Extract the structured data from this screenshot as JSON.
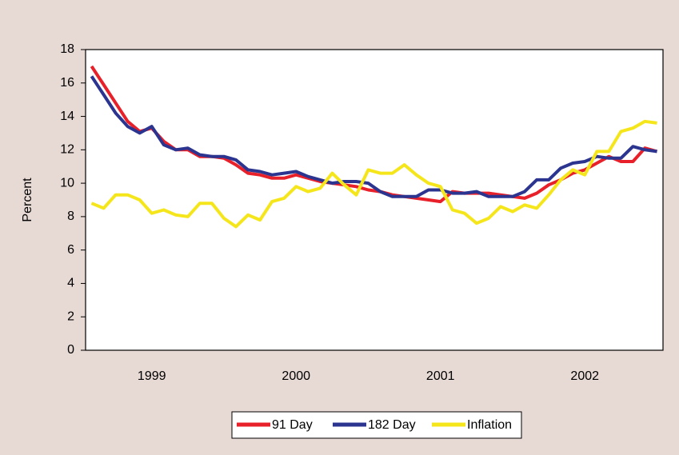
{
  "chart_data": {
    "type": "line",
    "y_label": "Percent",
    "categories": [
      null,
      null,
      null,
      null,
      null,
      "1999",
      null,
      null,
      null,
      null,
      null,
      null,
      null,
      null,
      null,
      null,
      null,
      "2000",
      null,
      null,
      null,
      null,
      null,
      null,
      null,
      null,
      null,
      null,
      null,
      "2001",
      null,
      null,
      null,
      null,
      null,
      null,
      null,
      null,
      null,
      null,
      null,
      "2002",
      null,
      null,
      null,
      null,
      null,
      null
    ],
    "series": [
      {
        "name": "91 Day",
        "color": "#e8202a",
        "values": [
          17.0,
          15.9,
          14.8,
          13.7,
          13.1,
          13.3,
          12.5,
          12.0,
          12.0,
          11.6,
          11.6,
          11.5,
          11.1,
          10.6,
          10.5,
          10.3,
          10.3,
          10.5,
          10.3,
          10.1,
          10.0,
          9.9,
          9.8,
          9.6,
          9.5,
          9.3,
          9.2,
          9.1,
          9.0,
          8.9,
          9.5,
          9.4,
          9.4,
          9.4,
          9.3,
          9.2,
          9.1,
          9.4,
          9.9,
          10.2,
          10.6,
          10.8,
          11.2,
          11.6,
          11.3,
          11.3,
          12.1,
          11.9
        ]
      },
      {
        "name": "182 Day",
        "color": "#2b3590",
        "values": [
          16.4,
          15.3,
          14.2,
          13.4,
          13.0,
          13.4,
          12.3,
          12.0,
          12.1,
          11.7,
          11.6,
          11.6,
          11.4,
          10.8,
          10.7,
          10.5,
          10.6,
          10.7,
          10.4,
          10.2,
          10.0,
          10.1,
          10.1,
          10.0,
          9.5,
          9.2,
          9.2,
          9.2,
          9.6,
          9.6,
          9.4,
          9.4,
          9.5,
          9.2,
          9.2,
          9.2,
          9.5,
          10.2,
          10.2,
          10.9,
          11.2,
          11.3,
          11.6,
          11.5,
          11.5,
          12.2,
          12.0,
          11.9
        ]
      },
      {
        "name": "Inflation",
        "color": "#f5e61c",
        "values": [
          8.8,
          8.5,
          9.3,
          9.3,
          9.0,
          8.2,
          8.4,
          8.1,
          8.0,
          8.8,
          8.8,
          7.9,
          7.4,
          8.1,
          7.8,
          8.9,
          9.1,
          9.8,
          9.5,
          9.7,
          10.6,
          9.9,
          9.3,
          10.8,
          10.6,
          10.6,
          11.1,
          10.5,
          10.0,
          9.8,
          8.4,
          8.2,
          7.6,
          7.9,
          8.6,
          8.3,
          8.7,
          8.5,
          9.3,
          10.2,
          10.8,
          10.5,
          11.9,
          11.9,
          13.1,
          13.3,
          13.7,
          13.6
        ]
      }
    ],
    "ylim": [
      0,
      18
    ],
    "yticks": [
      0,
      2,
      4,
      6,
      8,
      10,
      12,
      14,
      16,
      18
    ],
    "legend": "bottom"
  }
}
